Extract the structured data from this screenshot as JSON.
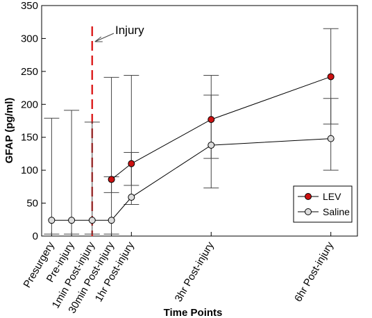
{
  "chart_data": {
    "type": "line",
    "xlabel": "Time Points",
    "ylabel": "GFAP (pg/ml)",
    "ylim": [
      0,
      350
    ],
    "yticks": [
      0,
      50,
      100,
      150,
      200,
      250,
      300,
      350
    ],
    "categories": [
      "Presurgery",
      "Pre-injury",
      "1min Post-injury",
      "30min Post-injury",
      "1hr Post-injury",
      "3hr Post-injury",
      "6hr Post-injury"
    ],
    "x_minutes": [
      -60,
      -30,
      1,
      30,
      60,
      180,
      360
    ],
    "grid": false,
    "legend_position": "bottom-right",
    "series": [
      {
        "name": "LEV",
        "marker_color": "#cc1111",
        "line_color": "#000000",
        "points": [
          {
            "x": 30,
            "y": 86,
            "err_low": 66,
            "err_high": 241
          },
          {
            "x": 60,
            "y": 110,
            "err_low": 77,
            "err_high": 244
          },
          {
            "x": 180,
            "y": 177,
            "err_low": 118,
            "err_high": 244
          },
          {
            "x": 360,
            "y": 242,
            "err_low": 170,
            "err_high": 315
          }
        ]
      },
      {
        "name": "Saline",
        "marker_color": "#dddddd",
        "line_color": "#000000",
        "points": [
          {
            "x": -60,
            "y": 24,
            "err_low": 3,
            "err_high": 179
          },
          {
            "x": -30,
            "y": 24,
            "err_low": 3,
            "err_high": 191
          },
          {
            "x": 1,
            "y": 24,
            "err_low": 3,
            "err_high": 173
          },
          {
            "x": 30,
            "y": 24,
            "err_low": 3,
            "err_high": 90
          },
          {
            "x": 60,
            "y": 59,
            "err_low": 48,
            "err_high": 127
          },
          {
            "x": 180,
            "y": 138,
            "err_low": 73,
            "err_high": 214
          },
          {
            "x": 360,
            "y": 148,
            "err_low": 100,
            "err_high": 209
          }
        ]
      }
    ],
    "annotations": [
      {
        "text": "Injury",
        "x": 1,
        "line_color": "#dd2222"
      }
    ]
  }
}
